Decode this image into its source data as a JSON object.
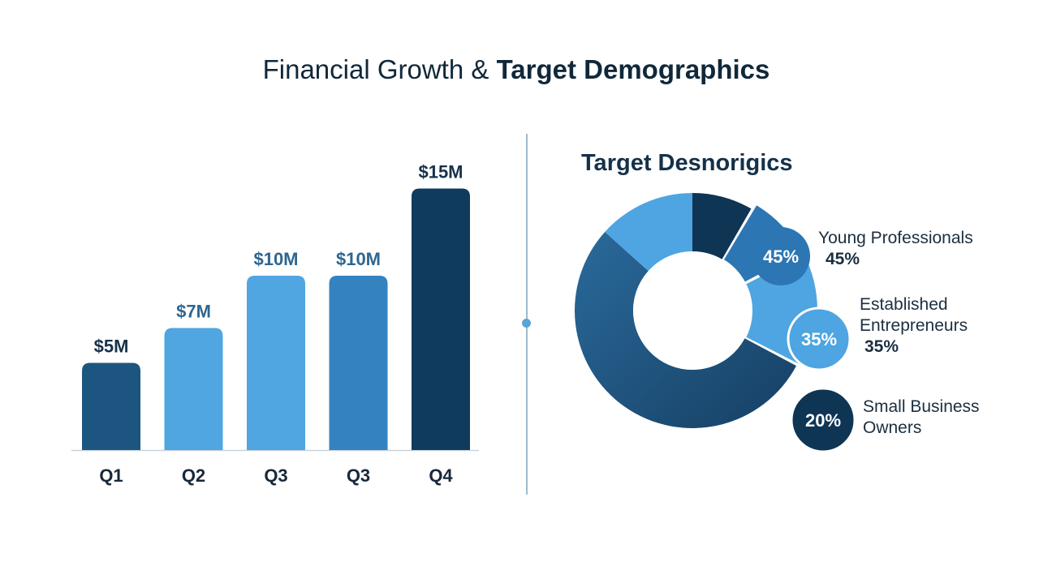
{
  "title": {
    "regular": "Financial Growth & ",
    "bold": "Target Demographics"
  },
  "colors": {
    "bar_dark": "#1c5680",
    "bar_light": "#4fa6e0",
    "bar_mid": "#3582c0",
    "bar_navy": "#0f3b5e",
    "donut_dark": "#1d4e76",
    "donut_light": "#4ea5e1",
    "donut_mid": "#2c76b3",
    "donut_navy": "#0f3555"
  },
  "chart_data": [
    {
      "type": "bar",
      "categories": [
        "Q1",
        "Q2",
        "Q3",
        "Q3",
        "Q4"
      ],
      "values": [
        5,
        7,
        10,
        10,
        15
      ],
      "data_labels": [
        "$5M",
        "$7M",
        "$10M",
        "$10M",
        "$15M"
      ],
      "title": "",
      "xlabel": "",
      "ylabel": "",
      "grid": false
    },
    {
      "type": "pie",
      "title": "Target Desnorigics",
      "labels": [
        "Young Professionals",
        "Established Entrepreneurs",
        "Small Business Owners"
      ],
      "values": [
        45,
        35,
        20
      ],
      "slice_labels": [
        "45%",
        "35%",
        "20%"
      ],
      "legend_values": [
        "45%",
        "35%",
        ""
      ],
      "legend_lines": [
        [
          "Young Professionals"
        ],
        [
          "Established",
          "Entrepreneurs"
        ],
        [
          "Small Business",
          "Owners"
        ]
      ]
    }
  ]
}
